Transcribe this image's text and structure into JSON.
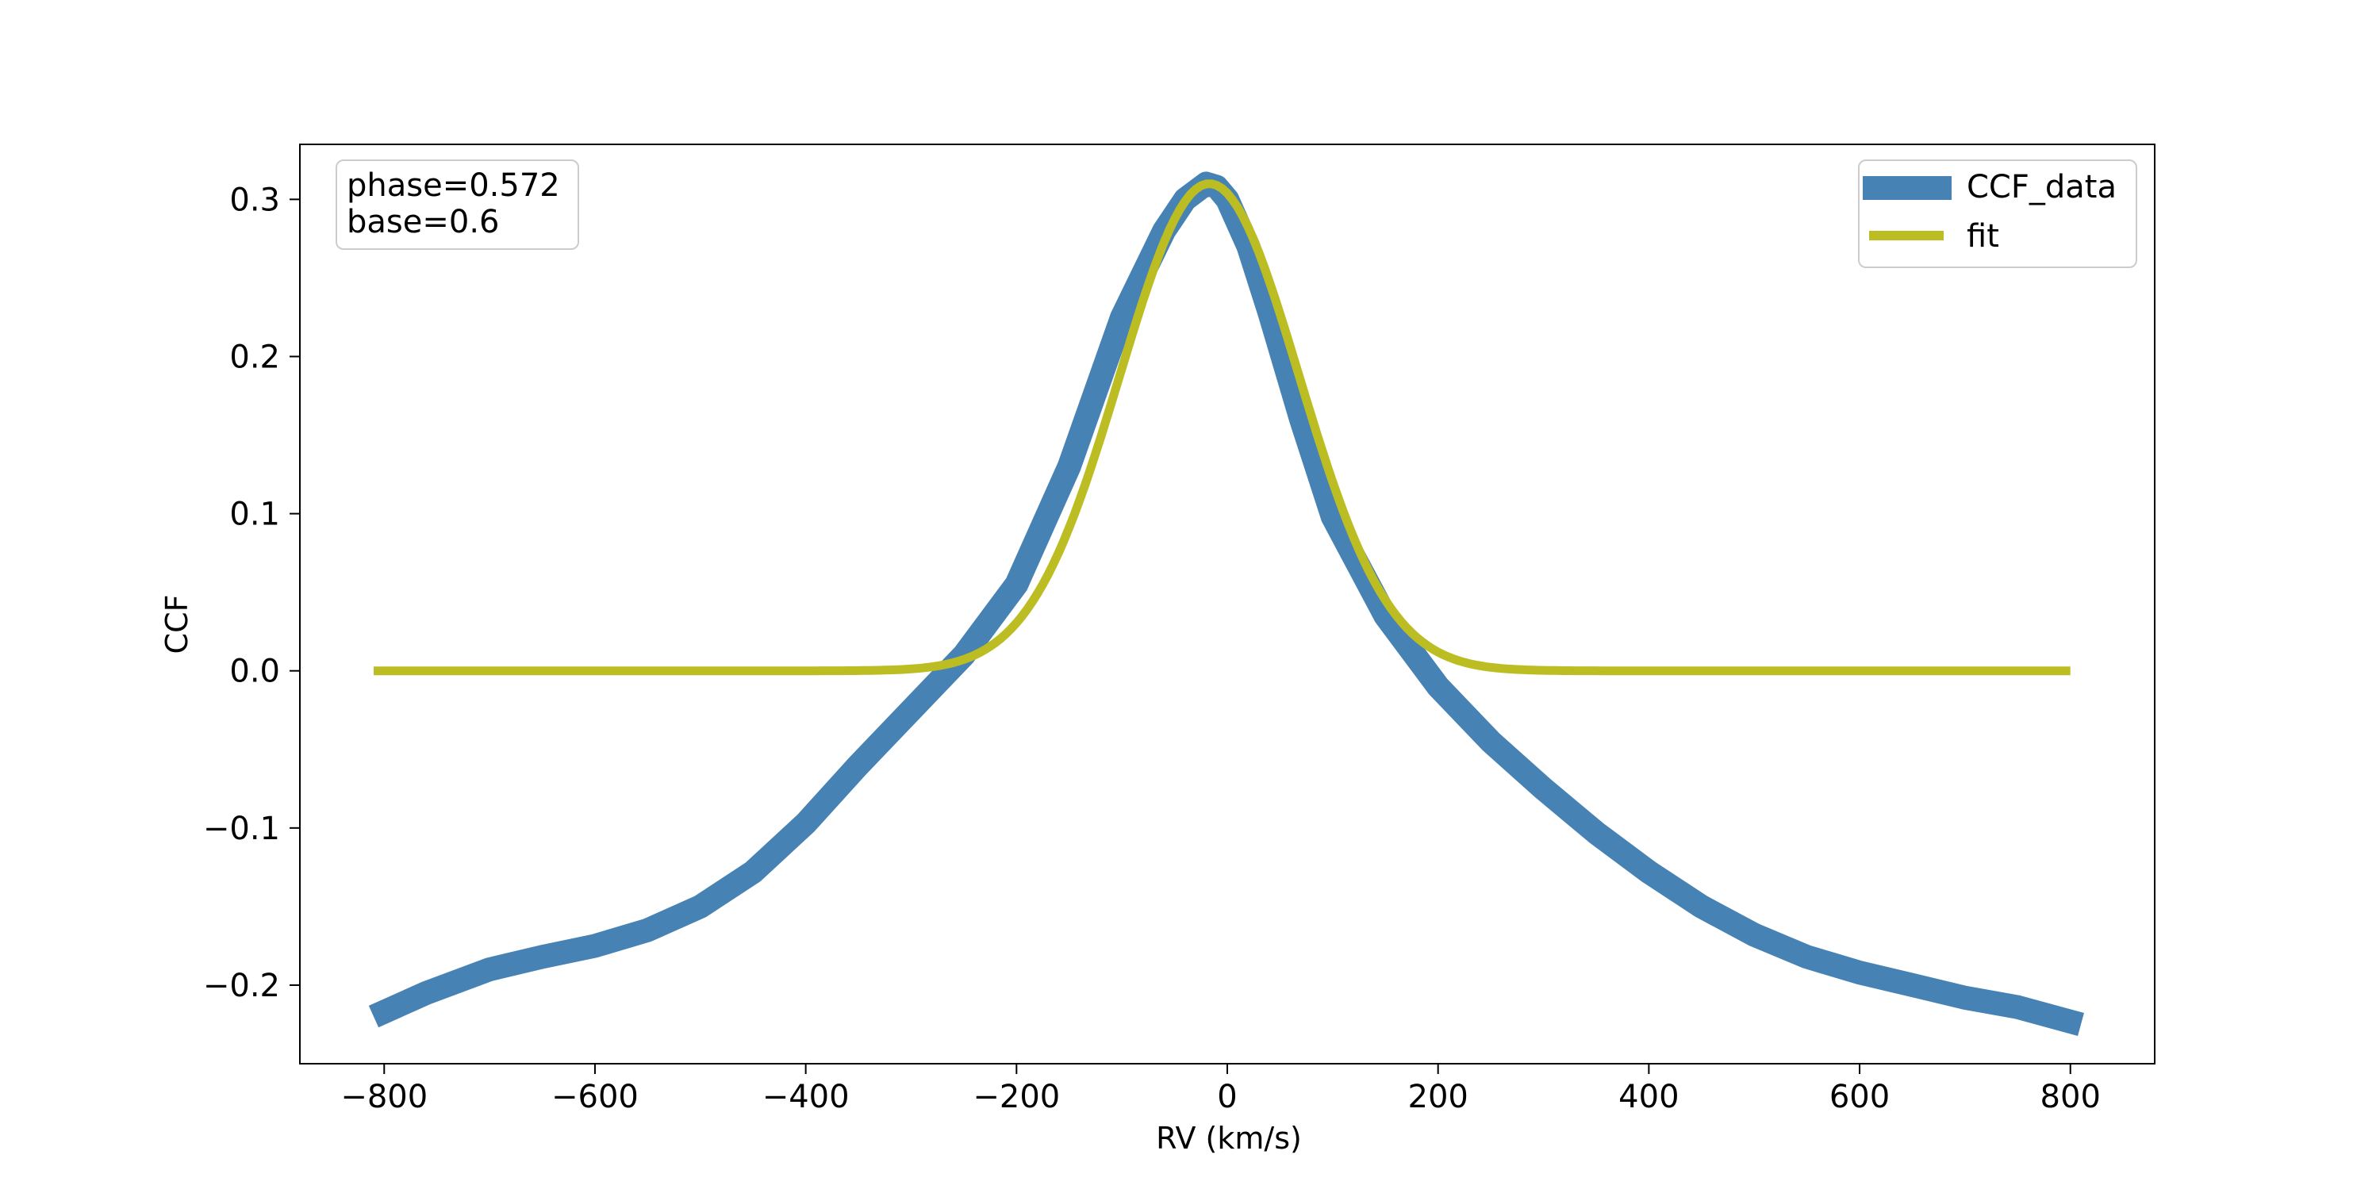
{
  "chart_data": {
    "type": "line",
    "xlabel": "RV (km/s)",
    "ylabel": "CCF",
    "xlim": [
      -880,
      880
    ],
    "ylim": [
      -0.25,
      0.335
    ],
    "xticks": [
      -800,
      -600,
      -400,
      -200,
      0,
      200,
      400,
      600,
      800
    ],
    "xtick_labels": [
      "−800",
      "−600",
      "−400",
      "−200",
      "0",
      "200",
      "400",
      "600",
      "800"
    ],
    "yticks": [
      -0.2,
      -0.1,
      0.0,
      0.1,
      0.2,
      0.3
    ],
    "ytick_labels": [
      "−0.2",
      "−0.1",
      "0.0",
      "0.1",
      "0.2",
      "0.3"
    ],
    "grid": false,
    "legend_position": "top-right",
    "annotation": {
      "position": "top-left",
      "lines": [
        "phase=0.572",
        "base=0.6"
      ]
    },
    "series": [
      {
        "name": "CCF_data",
        "color": "#4682b4",
        "style": "thick-line",
        "x": [
          -810,
          -760,
          -700,
          -650,
          -600,
          -550,
          -500,
          -450,
          -400,
          -350,
          -300,
          -250,
          -200,
          -150,
          -100,
          -60,
          -40,
          -20,
          -10,
          0,
          20,
          40,
          70,
          100,
          150,
          200,
          250,
          300,
          350,
          400,
          450,
          500,
          550,
          600,
          650,
          700,
          750,
          810
        ],
        "y": [
          -0.22,
          -0.205,
          -0.19,
          -0.182,
          -0.175,
          -0.165,
          -0.15,
          -0.128,
          -0.097,
          -0.06,
          -0.025,
          0.01,
          0.055,
          0.13,
          0.225,
          0.28,
          0.3,
          0.31,
          0.308,
          0.3,
          0.27,
          0.228,
          0.16,
          0.098,
          0.035,
          -0.01,
          -0.045,
          -0.075,
          -0.103,
          -0.128,
          -0.15,
          -0.168,
          -0.182,
          -0.192,
          -0.2,
          -0.208,
          -0.214,
          -0.225
        ]
      },
      {
        "name": "fit",
        "color": "#bcbd22",
        "style": "line",
        "model": {
          "shape": "gaussian",
          "amplitude": 0.31,
          "center": -17,
          "sigma": 85,
          "baseline": 0.0,
          "x_range": [
            -810,
            800
          ]
        }
      }
    ]
  }
}
